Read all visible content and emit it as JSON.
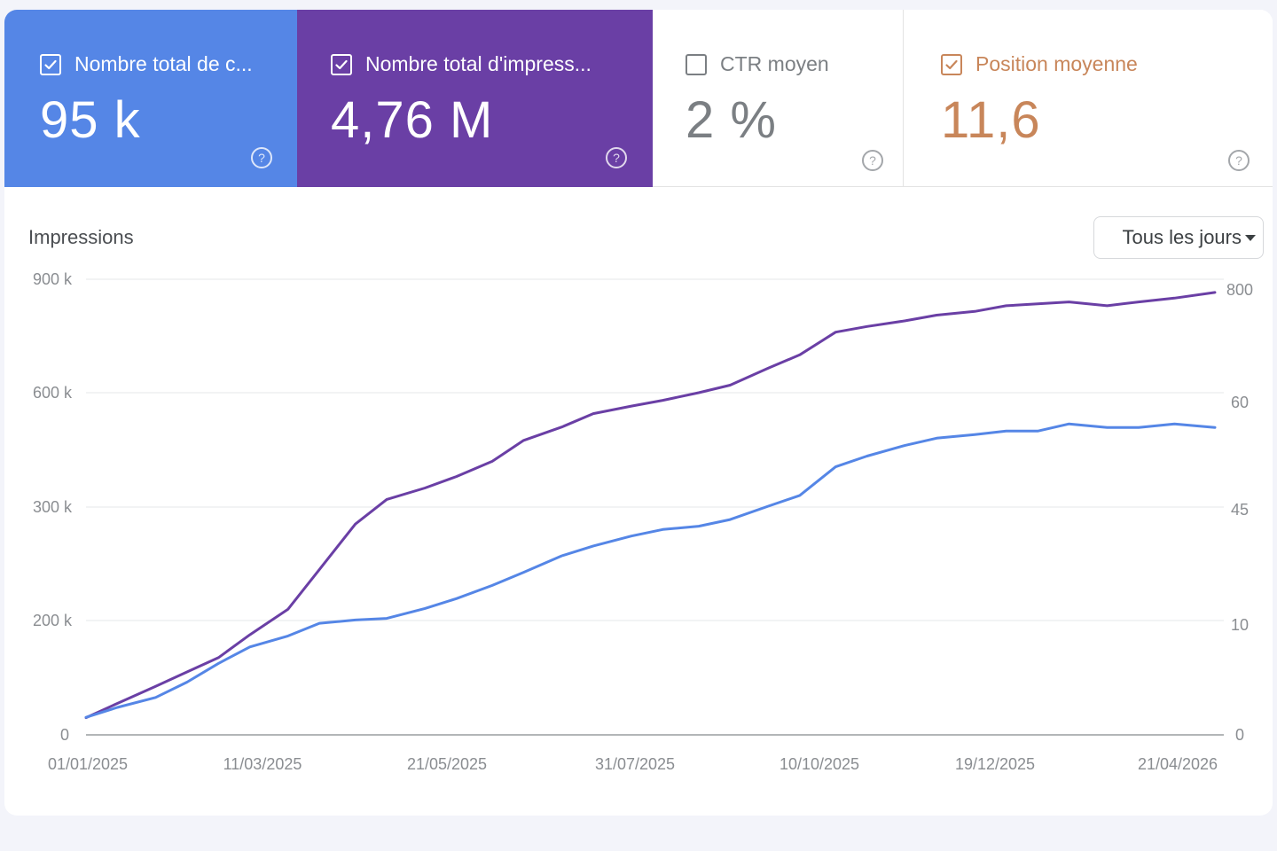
{
  "metrics": [
    {
      "label": "Nombre total de c...",
      "value": "95 k",
      "checked": true,
      "color": "#5586e6"
    },
    {
      "label": "Nombre total d'impress...",
      "value": "4,76 M",
      "checked": true,
      "color": "#6a3fa5"
    },
    {
      "label": "CTR moyen",
      "value": "2 %",
      "checked": false,
      "color": "#7b7f83"
    },
    {
      "label": "Position moyenne",
      "value": "11,6",
      "checked": true,
      "color": "#c8865a"
    }
  ],
  "help_glyph": "?",
  "period_select": {
    "label": "Tous les jours"
  },
  "chart_data": {
    "type": "line",
    "title": "Impressions",
    "x_tick_labels": [
      "01/01/2025",
      "11/03/2025",
      "21/05/2025",
      "31/07/2025",
      "10/10/2025",
      "19/12/2025",
      "21/04/2026"
    ],
    "x_range": [
      "01/01/2025",
      "19/05/2026"
    ],
    "y_left_ticks": [
      "0",
      "200 k",
      "300 k",
      "600 k",
      "900 k"
    ],
    "y_right_ticks": [
      "0",
      "10",
      "45",
      "60",
      "800"
    ],
    "left_axis_series": "Nombre total d'impressions",
    "right_axis_series": "Nombre total de clics",
    "grid": true,
    "legend": "none",
    "series": [
      {
        "name": "Nombre total d'impressions",
        "axis": "left",
        "color": "#6a3fa5",
        "points": [
          {
            "x": "01/01/2025",
            "y": 30000
          },
          {
            "x": "15/01/2025",
            "y": 55000
          },
          {
            "x": "01/02/2025",
            "y": 85000
          },
          {
            "x": "15/02/2025",
            "y": 110000
          },
          {
            "x": "01/03/2025",
            "y": 135000
          },
          {
            "x": "15/03/2025",
            "y": 175000
          },
          {
            "x": "01/04/2025",
            "y": 210000
          },
          {
            "x": "15/04/2025",
            "y": 245000
          },
          {
            "x": "01/05/2025",
            "y": 285000
          },
          {
            "x": "15/05/2025",
            "y": 320000
          },
          {
            "x": "01/06/2025",
            "y": 350000
          },
          {
            "x": "15/06/2025",
            "y": 380000
          },
          {
            "x": "01/07/2025",
            "y": 420000
          },
          {
            "x": "15/07/2025",
            "y": 475000
          },
          {
            "x": "01/08/2025",
            "y": 510000
          },
          {
            "x": "15/08/2025",
            "y": 545000
          },
          {
            "x": "01/09/2025",
            "y": 565000
          },
          {
            "x": "15/09/2025",
            "y": 580000
          },
          {
            "x": "01/10/2025",
            "y": 600000
          },
          {
            "x": "15/10/2025",
            "y": 620000
          },
          {
            "x": "01/11/2025",
            "y": 665000
          },
          {
            "x": "15/11/2025",
            "y": 700000
          },
          {
            "x": "01/12/2025",
            "y": 760000
          },
          {
            "x": "15/12/2025",
            "y": 775000
          },
          {
            "x": "01/01/2026",
            "y": 790000
          },
          {
            "x": "15/01/2026",
            "y": 805000
          },
          {
            "x": "01/02/2026",
            "y": 815000
          },
          {
            "x": "15/02/2026",
            "y": 830000
          },
          {
            "x": "01/03/2026",
            "y": 835000
          },
          {
            "x": "15/03/2026",
            "y": 840000
          },
          {
            "x": "01/04/2026",
            "y": 830000
          },
          {
            "x": "15/04/2026",
            "y": 840000
          },
          {
            "x": "01/05/2026",
            "y": 850000
          },
          {
            "x": "19/05/2026",
            "y": 865000
          }
        ]
      },
      {
        "name": "Nombre total de clics",
        "axis": "right",
        "color": "#5586e6",
        "points": [
          {
            "x": "01/01/2025",
            "y": 1.6
          },
          {
            "x": "15/01/2025",
            "y": 2.5
          },
          {
            "x": "01/02/2025",
            "y": 3.4
          },
          {
            "x": "15/02/2025",
            "y": 4.8
          },
          {
            "x": "01/03/2025",
            "y": 6.5
          },
          {
            "x": "15/03/2025",
            "y": 8.0
          },
          {
            "x": "01/04/2025",
            "y": 9.0
          },
          {
            "x": "15/04/2025",
            "y": 10.5
          },
          {
            "x": "01/05/2025",
            "y": 11.5
          },
          {
            "x": "15/05/2025",
            "y": 12.0
          },
          {
            "x": "01/06/2025",
            "y": 15.0
          },
          {
            "x": "15/06/2025",
            "y": 18.0
          },
          {
            "x": "01/07/2025",
            "y": 22.0
          },
          {
            "x": "15/07/2025",
            "y": 26.0
          },
          {
            "x": "01/08/2025",
            "y": 31.0
          },
          {
            "x": "15/08/2025",
            "y": 34.0
          },
          {
            "x": "01/09/2025",
            "y": 37.0
          },
          {
            "x": "15/09/2025",
            "y": 39.0
          },
          {
            "x": "01/10/2025",
            "y": 40.0
          },
          {
            "x": "15/10/2025",
            "y": 42.0
          },
          {
            "x": "01/11/2025",
            "y": 45.5
          },
          {
            "x": "15/11/2025",
            "y": 47.0
          },
          {
            "x": "01/12/2025",
            "y": 51.0
          },
          {
            "x": "15/12/2025",
            "y": 52.5
          },
          {
            "x": "01/01/2026",
            "y": 54.0
          },
          {
            "x": "15/01/2026",
            "y": 55.0
          },
          {
            "x": "01/02/2026",
            "y": 55.5
          },
          {
            "x": "15/02/2026",
            "y": 56.0
          },
          {
            "x": "01/03/2026",
            "y": 56.0
          },
          {
            "x": "15/03/2026",
            "y": 57.0
          },
          {
            "x": "01/04/2026",
            "y": 56.5
          },
          {
            "x": "15/04/2026",
            "y": 56.5
          },
          {
            "x": "01/05/2026",
            "y": 57.0
          },
          {
            "x": "19/05/2026",
            "y": 56.5
          }
        ]
      }
    ]
  }
}
